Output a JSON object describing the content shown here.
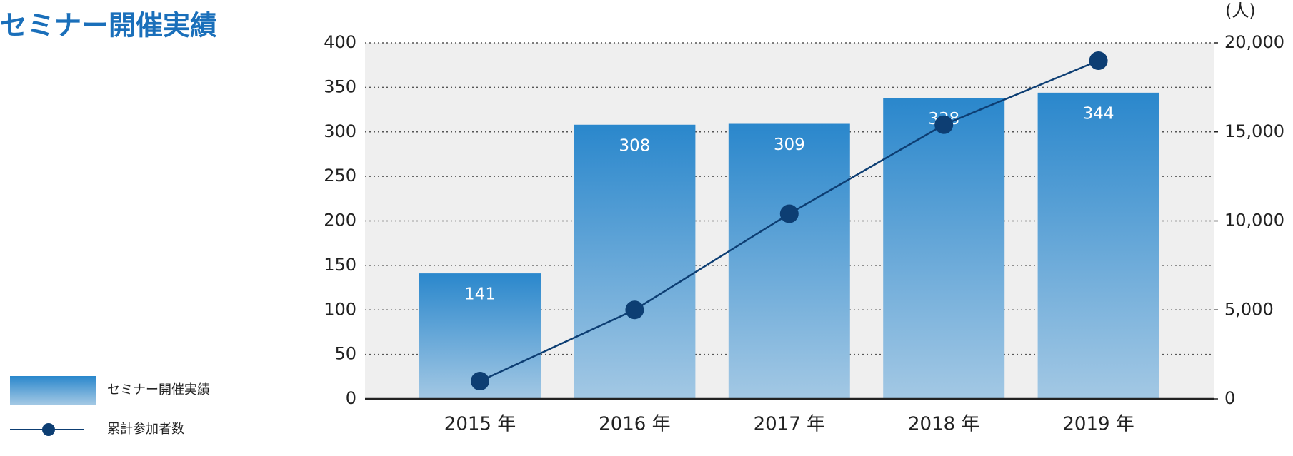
{
  "chart_data": {
    "type": "bar+line",
    "title": "セミナー開催実績",
    "categories": [
      "2015 年",
      "2016 年",
      "2017 年",
      "2018 年",
      "2019 年"
    ],
    "series": [
      {
        "name": "セミナー開催実績",
        "type": "bar",
        "color": "#2a87cc",
        "values": [
          141,
          308,
          309,
          338,
          344
        ]
      },
      {
        "name": "累計参加者数",
        "type": "line",
        "axis": "y2",
        "color": "#0d3e73",
        "values": [
          1000,
          5000,
          10400,
          15400,
          19000
        ]
      }
    ],
    "ylim": [
      0,
      400
    ],
    "yticks": [
      0,
      50,
      100,
      150,
      200,
      250,
      300,
      350,
      400
    ],
    "y2label": "(人)",
    "y2lim": [
      0,
      20000
    ],
    "y2ticks": [
      0,
      {
        "value": 5000,
        "label": "5,000"
      },
      {
        "value": 10000,
        "label": "10,000"
      },
      {
        "value": 15000,
        "label": "15,000"
      },
      {
        "value": 20000,
        "label": "20,000"
      }
    ],
    "grid": true,
    "legend": "bottom-left"
  }
}
